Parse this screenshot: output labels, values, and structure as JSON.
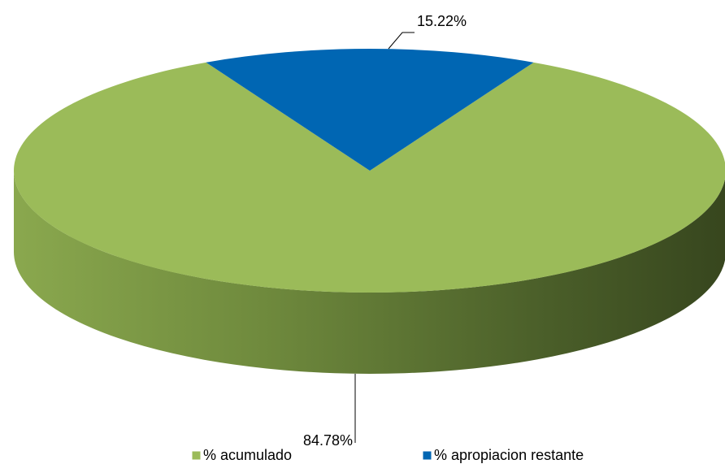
{
  "chart_data": {
    "type": "pie",
    "categories": [
      "% acumulado",
      "% apropiacion restante"
    ],
    "values": [
      84.78,
      15.22
    ],
    "value_labels": [
      "84.78%",
      "15.22%"
    ],
    "colors": [
      "#9bbb59",
      "#0066b3"
    ],
    "legend": "bottom"
  }
}
